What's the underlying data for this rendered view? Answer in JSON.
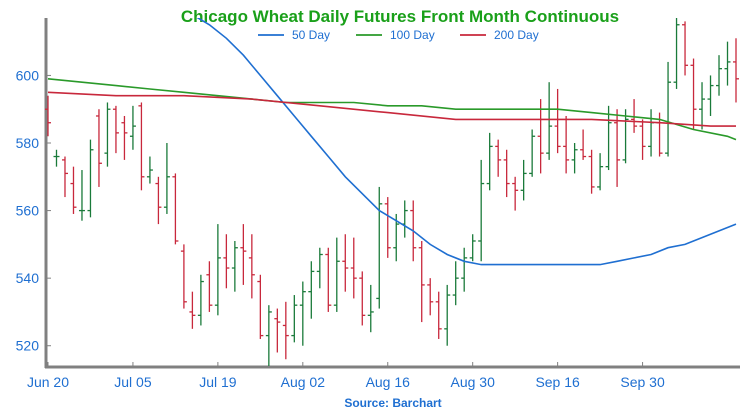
{
  "title": "Chicago Wheat Daily Futures Front Month Continuous",
  "source": "Source: Barchart",
  "colors": {
    "up": "#1a7a3a",
    "down": "#c8283c",
    "ma50": "#1f6fd1",
    "ma100": "#2a9a2a",
    "ma200": "#c8283c",
    "axis": "#808080",
    "text": "#1f6fd1",
    "title": "#1aa01a"
  },
  "chart_data": {
    "type": "ohlc",
    "title": "Chicago Wheat Daily Futures Front Month Continuous",
    "xlabel": "",
    "ylabel": "",
    "ylim": [
      514,
      617
    ],
    "yticks": [
      520,
      540,
      560,
      580,
      600
    ],
    "xticks": [
      {
        "index": 0,
        "label": "Jun 20"
      },
      {
        "index": 10,
        "label": "Jul 05"
      },
      {
        "index": 20,
        "label": "Jul 19"
      },
      {
        "index": 30,
        "label": "Aug 02"
      },
      {
        "index": 40,
        "label": "Aug 16"
      },
      {
        "index": 50,
        "label": "Aug 30"
      },
      {
        "index": 60,
        "label": "Sep 16"
      },
      {
        "index": 70,
        "label": "Sep 30"
      }
    ],
    "legend": {
      "placement": "top-center",
      "entries": [
        "50 Day",
        "100 Day",
        "200 Day"
      ]
    },
    "bars": [
      {
        "date": "Jun 20",
        "o": 590,
        "h": 594,
        "l": 582,
        "c": 586
      },
      {
        "date": "Jun 21",
        "o": 576,
        "h": 578,
        "l": 573,
        "c": 576
      },
      {
        "date": "Jun 22",
        "o": 575,
        "h": 576,
        "l": 564,
        "c": 571
      },
      {
        "date": "Jun 23",
        "o": 568,
        "h": 573,
        "l": 559,
        "c": 561
      },
      {
        "date": "Jun 24",
        "o": 560,
        "h": 572,
        "l": 557,
        "c": 560
      },
      {
        "date": "Jun 27",
        "o": 560,
        "h": 581,
        "l": 558,
        "c": 578
      },
      {
        "date": "Jun 28",
        "o": 588,
        "h": 590,
        "l": 567,
        "c": 574
      },
      {
        "date": "Jun 29",
        "o": 577,
        "h": 592,
        "l": 573,
        "c": 590
      },
      {
        "date": "Jun 30",
        "o": 590,
        "h": 591,
        "l": 577,
        "c": 583
      },
      {
        "date": "Jul 01",
        "o": 586,
        "h": 588,
        "l": 575,
        "c": 583
      },
      {
        "date": "Jul 05",
        "o": 582,
        "h": 591,
        "l": 578,
        "c": 585
      },
      {
        "date": "Jul 06",
        "o": 591,
        "h": 592,
        "l": 566,
        "c": 570
      },
      {
        "date": "Jul 07",
        "o": 570,
        "h": 576,
        "l": 568,
        "c": 572
      },
      {
        "date": "Jul 08",
        "o": 568,
        "h": 570,
        "l": 556,
        "c": 561
      },
      {
        "date": "Jul 11",
        "o": 561,
        "h": 580,
        "l": 559,
        "c": 570
      },
      {
        "date": "Jul 12",
        "o": 570,
        "h": 571,
        "l": 550,
        "c": 551
      },
      {
        "date": "Jul 13",
        "o": 548,
        "h": 550,
        "l": 531,
        "c": 533
      },
      {
        "date": "Jul 14",
        "o": 530,
        "h": 536,
        "l": 525,
        "c": 529
      },
      {
        "date": "Jul 15",
        "o": 529,
        "h": 541,
        "l": 526,
        "c": 539
      },
      {
        "date": "Jul 18",
        "o": 541,
        "h": 545,
        "l": 530,
        "c": 532
      },
      {
        "date": "Jul 19",
        "o": 532,
        "h": 556,
        "l": 529,
        "c": 546
      },
      {
        "date": "Jul 20",
        "o": 546,
        "h": 553,
        "l": 537,
        "c": 543
      },
      {
        "date": "Jul 21",
        "o": 543,
        "h": 551,
        "l": 536,
        "c": 549
      },
      {
        "date": "Jul 22",
        "o": 549,
        "h": 556,
        "l": 538,
        "c": 548
      },
      {
        "date": "Jul 25",
        "o": 546,
        "h": 553,
        "l": 534,
        "c": 541
      },
      {
        "date": "Jul 26",
        "o": 539,
        "h": 541,
        "l": 522,
        "c": 523
      },
      {
        "date": "Jul 27",
        "o": 523,
        "h": 532,
        "l": 514,
        "c": 530
      },
      {
        "date": "Jul 28",
        "o": 528,
        "h": 531,
        "l": 518,
        "c": 527
      },
      {
        "date": "Jul 29",
        "o": 526,
        "h": 533,
        "l": 516,
        "c": 523
      },
      {
        "date": "Aug 01",
        "o": 523,
        "h": 535,
        "l": 521,
        "c": 532
      },
      {
        "date": "Aug 02",
        "o": 532,
        "h": 539,
        "l": 520,
        "c": 536
      },
      {
        "date": "Aug 03",
        "o": 536,
        "h": 545,
        "l": 528,
        "c": 542
      },
      {
        "date": "Aug 04",
        "o": 542,
        "h": 549,
        "l": 537,
        "c": 547
      },
      {
        "date": "Aug 05",
        "o": 547,
        "h": 549,
        "l": 530,
        "c": 532
      },
      {
        "date": "Aug 08",
        "o": 532,
        "h": 552,
        "l": 530,
        "c": 545
      },
      {
        "date": "Aug 09",
        "o": 545,
        "h": 553,
        "l": 536,
        "c": 543
      },
      {
        "date": "Aug 10",
        "o": 543,
        "h": 552,
        "l": 534,
        "c": 540
      },
      {
        "date": "Aug 11",
        "o": 540,
        "h": 542,
        "l": 526,
        "c": 529
      },
      {
        "date": "Aug 12",
        "o": 529,
        "h": 538,
        "l": 524,
        "c": 530
      },
      {
        "date": "Aug 15",
        "o": 534,
        "h": 567,
        "l": 531,
        "c": 562
      },
      {
        "date": "Aug 16",
        "o": 562,
        "h": 564,
        "l": 546,
        "c": 549
      },
      {
        "date": "Aug 17",
        "o": 549,
        "h": 559,
        "l": 545,
        "c": 556
      },
      {
        "date": "Aug 18",
        "o": 556,
        "h": 563,
        "l": 552,
        "c": 560
      },
      {
        "date": "Aug 19",
        "o": 560,
        "h": 563,
        "l": 545,
        "c": 549
      },
      {
        "date": "Aug 22",
        "o": 549,
        "h": 551,
        "l": 527,
        "c": 538
      },
      {
        "date": "Aug 23",
        "o": 538,
        "h": 540,
        "l": 529,
        "c": 533
      },
      {
        "date": "Aug 24",
        "o": 533,
        "h": 536,
        "l": 522,
        "c": 525
      },
      {
        "date": "Aug 25",
        "o": 525,
        "h": 538,
        "l": 520,
        "c": 535
      },
      {
        "date": "Aug 26",
        "o": 535,
        "h": 545,
        "l": 532,
        "c": 540
      },
      {
        "date": "Aug 29",
        "o": 540,
        "h": 549,
        "l": 536,
        "c": 546
      },
      {
        "date": "Aug 30",
        "o": 546,
        "h": 553,
        "l": 545,
        "c": 551
      },
      {
        "date": "Aug 31",
        "o": 551,
        "h": 575,
        "l": 545,
        "c": 568
      },
      {
        "date": "Sep 01",
        "o": 568,
        "h": 583,
        "l": 566,
        "c": 579
      },
      {
        "date": "Sep 02",
        "o": 579,
        "h": 581,
        "l": 570,
        "c": 575
      },
      {
        "date": "Sep 06",
        "o": 575,
        "h": 578,
        "l": 564,
        "c": 568
      },
      {
        "date": "Sep 07",
        "o": 568,
        "h": 570,
        "l": 560,
        "c": 566
      },
      {
        "date": "Sep 08",
        "o": 566,
        "h": 575,
        "l": 563,
        "c": 571
      },
      {
        "date": "Sep 09",
        "o": 571,
        "h": 584,
        "l": 570,
        "c": 582
      },
      {
        "date": "Sep 12",
        "o": 582,
        "h": 593,
        "l": 571,
        "c": 577
      },
      {
        "date": "Sep 13",
        "o": 577,
        "h": 598,
        "l": 575,
        "c": 585
      },
      {
        "date": "Sep 14",
        "o": 585,
        "h": 596,
        "l": 577,
        "c": 579
      },
      {
        "date": "Sep 15",
        "o": 579,
        "h": 588,
        "l": 571,
        "c": 575
      },
      {
        "date": "Sep 16",
        "o": 575,
        "h": 580,
        "l": 571,
        "c": 578
      },
      {
        "date": "Sep 19",
        "o": 578,
        "h": 584,
        "l": 575,
        "c": 576
      },
      {
        "date": "Sep 20",
        "o": 576,
        "h": 578,
        "l": 565,
        "c": 567
      },
      {
        "date": "Sep 21",
        "o": 567,
        "h": 577,
        "l": 566,
        "c": 573
      },
      {
        "date": "Sep 22",
        "o": 573,
        "h": 591,
        "l": 572,
        "c": 586
      },
      {
        "date": "Sep 23",
        "o": 586,
        "h": 590,
        "l": 567,
        "c": 575
      },
      {
        "date": "Sep 26",
        "o": 575,
        "h": 590,
        "l": 574,
        "c": 587
      },
      {
        "date": "Sep 27",
        "o": 587,
        "h": 593,
        "l": 583,
        "c": 585
      },
      {
        "date": "Sep 28",
        "o": 585,
        "h": 587,
        "l": 575,
        "c": 579
      },
      {
        "date": "Sep 29",
        "o": 579,
        "h": 590,
        "l": 576,
        "c": 586
      },
      {
        "date": "Sep 30",
        "o": 586,
        "h": 589,
        "l": 576,
        "c": 577
      },
      {
        "date": "Oct 03",
        "o": 577,
        "h": 604,
        "l": 576,
        "c": 598
      },
      {
        "date": "Oct 04",
        "o": 598,
        "h": 617,
        "l": 596,
        "c": 615
      },
      {
        "date": "Oct 05",
        "o": 615,
        "h": 616,
        "l": 600,
        "c": 603
      },
      {
        "date": "Oct 06",
        "o": 603,
        "h": 605,
        "l": 584,
        "c": 590
      },
      {
        "date": "Oct 07",
        "o": 590,
        "h": 598,
        "l": 584,
        "c": 593
      },
      {
        "date": "Oct 10",
        "o": 593,
        "h": 600,
        "l": 588,
        "c": 597
      },
      {
        "date": "Oct 11",
        "o": 597,
        "h": 606,
        "l": 594,
        "c": 602
      },
      {
        "date": "Oct 12",
        "o": 602,
        "h": 610,
        "l": 597,
        "c": 604
      },
      {
        "date": "Oct 13",
        "o": 604,
        "h": 611,
        "l": 592,
        "c": 599
      }
    ],
    "series": [
      {
        "name": "50 Day",
        "points": [
          [
            17,
            618
          ],
          [
            19,
            615
          ],
          [
            21,
            611
          ],
          [
            23,
            606
          ],
          [
            25,
            600
          ],
          [
            27,
            594
          ],
          [
            29,
            588
          ],
          [
            31,
            582
          ],
          [
            33,
            576
          ],
          [
            35,
            570
          ],
          [
            37,
            565
          ],
          [
            39,
            560
          ],
          [
            41,
            557
          ],
          [
            43,
            554
          ],
          [
            45,
            550
          ],
          [
            47,
            547
          ],
          [
            49,
            545
          ],
          [
            51,
            544
          ],
          [
            53,
            544
          ],
          [
            55,
            544
          ],
          [
            57,
            544
          ],
          [
            59,
            544
          ],
          [
            61,
            544
          ],
          [
            63,
            544
          ],
          [
            65,
            544
          ],
          [
            67,
            545
          ],
          [
            69,
            546
          ],
          [
            71,
            547
          ],
          [
            73,
            549
          ],
          [
            75,
            550
          ],
          [
            77,
            552
          ],
          [
            79,
            554
          ],
          [
            81,
            556
          ]
        ]
      },
      {
        "name": "100 Day",
        "points": [
          [
            0,
            599
          ],
          [
            4,
            598
          ],
          [
            8,
            597
          ],
          [
            12,
            596
          ],
          [
            16,
            595
          ],
          [
            20,
            594
          ],
          [
            24,
            593
          ],
          [
            28,
            592
          ],
          [
            32,
            592
          ],
          [
            36,
            592
          ],
          [
            40,
            591
          ],
          [
            44,
            591
          ],
          [
            48,
            590
          ],
          [
            52,
            590
          ],
          [
            56,
            590
          ],
          [
            60,
            590
          ],
          [
            64,
            589
          ],
          [
            68,
            588
          ],
          [
            72,
            587
          ],
          [
            76,
            584
          ],
          [
            80,
            582
          ],
          [
            81,
            581
          ]
        ]
      },
      {
        "name": "200 Day",
        "points": [
          [
            0,
            595
          ],
          [
            8,
            594
          ],
          [
            16,
            594
          ],
          [
            24,
            593
          ],
          [
            32,
            591
          ],
          [
            40,
            589
          ],
          [
            48,
            587
          ],
          [
            56,
            587
          ],
          [
            64,
            587
          ],
          [
            72,
            586
          ],
          [
            78,
            585
          ],
          [
            81,
            585
          ]
        ]
      }
    ]
  }
}
